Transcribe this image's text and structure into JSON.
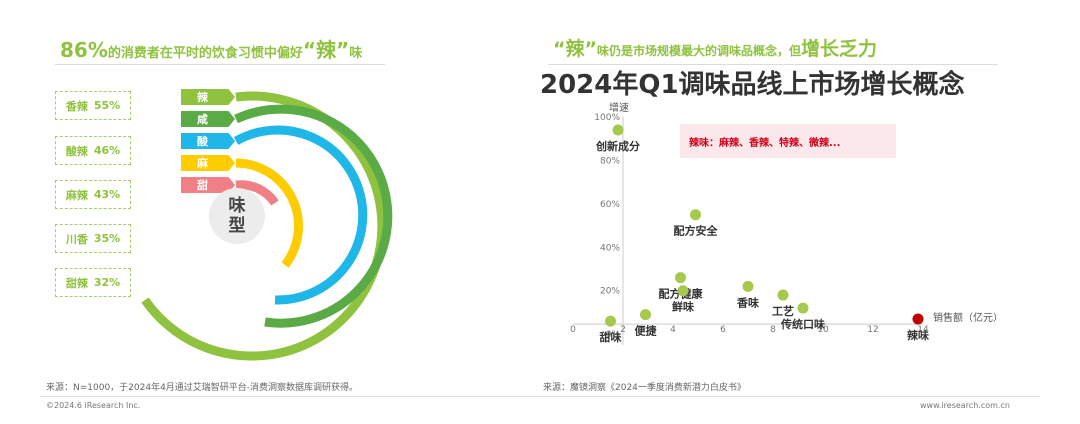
{
  "left": {
    "title": {
      "pct": "86%",
      "text": "的消费者在平时的饮食习惯中偏好",
      "brand": "“辣”",
      "suffix": "味"
    },
    "stats": [
      {
        "label": "香辣",
        "value": "55%"
      },
      {
        "label": "酸辣",
        "value": "46%"
      },
      {
        "label": "麻辣",
        "value": "43%"
      },
      {
        "label": "川香",
        "value": "35%"
      },
      {
        "label": "甜辣",
        "value": "32%"
      }
    ],
    "flags": [
      {
        "label": "辣",
        "color": "#8fc23f"
      },
      {
        "label": "咸",
        "color": "#5aab45"
      },
      {
        "label": "酸",
        "color": "#1fb6e8"
      },
      {
        "label": "麻",
        "color": "#ffcc00"
      },
      {
        "label": "甜",
        "color": "#f07f86"
      }
    ],
    "center_label": "味型",
    "source": "来源：N=1000，于2024年4月通过艾瑞智研平台-消费洞察数据库调研获得。",
    "footer": "©2024.6 iResearch Inc."
  },
  "right": {
    "subtitle": {
      "brand": "“辣”",
      "text": "味仍是市场规模最大的调味品概念，但",
      "growth": "增长乏力"
    },
    "main_title": "2024年Q1调味品线上市场增长概念",
    "note": "辣味：麻辣、香辣、特辣、微辣...",
    "source": "来源：魔镜洞察《2024一季度消费新潜力白皮书》",
    "footer": "www.iresearch.com.cn"
  },
  "chart_data": {
    "type": "scatter",
    "title": "2024年Q1调味品线上市场增长概念",
    "xlabel": "销售额（亿元）",
    "ylabel": "增速",
    "xlim": [
      0,
      14
    ],
    "ylim": [
      -5,
      100
    ],
    "xticks": [
      0,
      2,
      4,
      6,
      8,
      10,
      12,
      14
    ],
    "yticks": [
      0,
      20,
      40,
      60,
      80,
      100
    ],
    "ytick_labels": [
      "0%",
      "20%",
      "40%",
      "60%",
      "80%",
      "100%"
    ],
    "points": [
      {
        "name": "创新成分",
        "x": 1.8,
        "y": 94,
        "color": "#a5c94c"
      },
      {
        "name": "配方安全",
        "x": 4.9,
        "y": 55,
        "color": "#a5c94c"
      },
      {
        "name": "配方健康",
        "x": 4.3,
        "y": 26,
        "color": "#a5c94c"
      },
      {
        "name": "香味",
        "x": 7.0,
        "y": 22,
        "color": "#a5c94c"
      },
      {
        "name": "鲜味",
        "x": 4.4,
        "y": 20,
        "color": "#a5c94c"
      },
      {
        "name": "工艺",
        "x": 8.4,
        "y": 18,
        "color": "#a5c94c"
      },
      {
        "name": "传统口味",
        "x": 9.2,
        "y": 12,
        "color": "#a5c94c"
      },
      {
        "name": "便捷",
        "x": 2.9,
        "y": 9,
        "color": "#a5c94c"
      },
      {
        "name": "甜味",
        "x": 1.5,
        "y": 6,
        "color": "#a5c94c"
      },
      {
        "name": "辣味",
        "x": 13.8,
        "y": 7,
        "color": "#c00000"
      }
    ]
  }
}
